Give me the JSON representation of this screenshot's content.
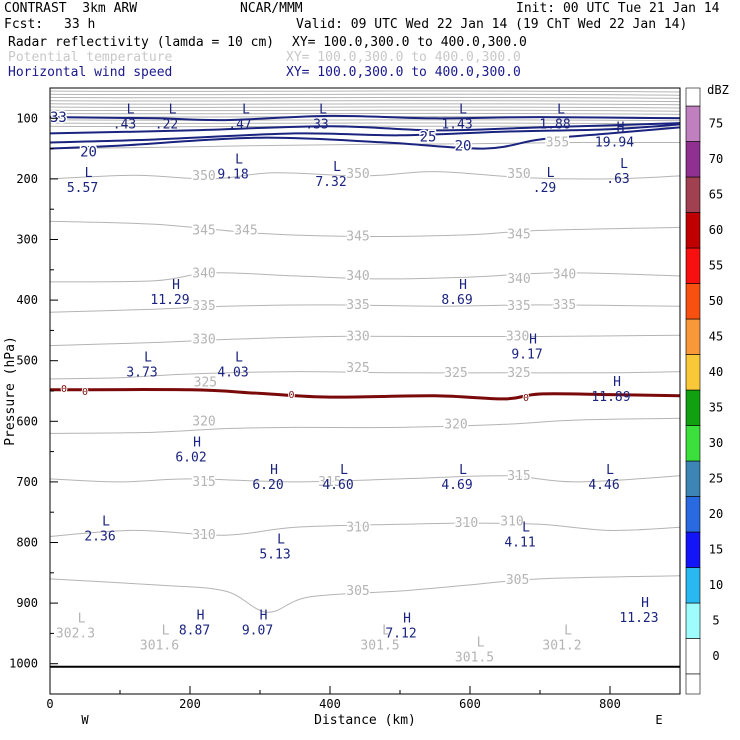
{
  "header": {
    "title": "CONTRAST  3km ARW",
    "center": "NCAR/MMM",
    "init": "Init: 00 UTC Tue 21 Jan 14",
    "fcst_label": "Fcst:",
    "fcst_value": "33 h",
    "valid": "Valid: 09 UTC Wed 22 Jan 14 (19 ChT Wed 22 Jan 14)",
    "fields": [
      {
        "name": "Radar reflectivity (lamda = 10 cm)",
        "xy": "XY= 100.0,300.0 to 400.0,300.0"
      },
      {
        "name": "Potential temperature",
        "xy": "XY= 100.0,300.0 to 400.0,300.0"
      },
      {
        "name": "Horizontal wind speed",
        "xy": "XY= 100.0,300.0 to 400.0,300.0"
      }
    ]
  },
  "chart_data": {
    "type": "contour-cross-section",
    "xlabel": "Distance (km)",
    "ylabel": "Pressure (hPa)",
    "xlim": [
      0,
      900
    ],
    "ylim": [
      1050,
      50
    ],
    "x_ticks": [
      0,
      200,
      400,
      600,
      800
    ],
    "y_ticks": [
      100,
      200,
      300,
      400,
      500,
      600,
      700,
      800,
      900,
      1000
    ],
    "x_end_labels": {
      "left": "W",
      "right": "E"
    },
    "colorbar": {
      "unit": "dBZ",
      "levels": [
        0,
        5,
        10,
        15,
        20,
        25,
        30,
        35,
        40,
        45,
        50,
        55,
        60,
        65,
        70,
        75
      ],
      "colors": [
        "#ffffff",
        "#9ffcfc",
        "#2ab8f0",
        "#1414f8",
        "#2a6ae0",
        "#3d85b5",
        "#3ce03c",
        "#10a010",
        "#f8c838",
        "#f89838",
        "#f85010",
        "#f81010",
        "#c00000",
        "#a04050",
        "#903090",
        "#c080c0"
      ]
    },
    "theta_isentropes": [
      {
        "value": 355,
        "points": [
          [
            0,
            150
          ],
          [
            150,
            148
          ],
          [
            300,
            145
          ],
          [
            450,
            143
          ],
          [
            600,
            142
          ],
          [
            750,
            140
          ],
          [
            900,
            140
          ]
        ],
        "labels": [
          [
            725,
            140
          ]
        ]
      },
      {
        "value": 350,
        "points": [
          [
            0,
            200
          ],
          [
            120,
            194
          ],
          [
            230,
            200
          ],
          [
            320,
            190
          ],
          [
            450,
            195
          ],
          [
            550,
            188
          ],
          [
            680,
            198
          ],
          [
            800,
            200
          ],
          [
            900,
            195
          ]
        ],
        "labels": [
          [
            220,
            195
          ],
          [
            440,
            192
          ],
          [
            670,
            192
          ]
        ]
      },
      {
        "value": 345,
        "points": [
          [
            0,
            270
          ],
          [
            150,
            275
          ],
          [
            300,
            290
          ],
          [
            450,
            295
          ],
          [
            600,
            292
          ],
          [
            700,
            285
          ],
          [
            900,
            280
          ]
        ],
        "labels": [
          [
            220,
            285
          ],
          [
            280,
            285
          ],
          [
            440,
            295
          ],
          [
            670,
            292
          ]
        ]
      },
      {
        "value": 340,
        "points": [
          [
            0,
            370
          ],
          [
            150,
            368
          ],
          [
            230,
            355
          ],
          [
            350,
            360
          ],
          [
            470,
            365
          ],
          [
            600,
            362
          ],
          [
            730,
            355
          ],
          [
            900,
            360
          ]
        ],
        "labels": [
          [
            220,
            356
          ],
          [
            440,
            360
          ],
          [
            670,
            365
          ],
          [
            735,
            358
          ]
        ]
      },
      {
        "value": 335,
        "points": [
          [
            0,
            420
          ],
          [
            150,
            415
          ],
          [
            250,
            410
          ],
          [
            400,
            408
          ],
          [
            550,
            410
          ],
          [
            700,
            408
          ],
          [
            900,
            410
          ]
        ],
        "labels": [
          [
            220,
            410
          ],
          [
            440,
            408
          ],
          [
            670,
            410
          ],
          [
            735,
            408
          ]
        ]
      },
      {
        "value": 330,
        "points": [
          [
            0,
            475
          ],
          [
            150,
            470
          ],
          [
            250,
            465
          ],
          [
            400,
            460
          ],
          [
            550,
            460
          ],
          [
            700,
            460
          ],
          [
            900,
            458
          ]
        ],
        "labels": [
          [
            220,
            465
          ],
          [
            440,
            460
          ],
          [
            668,
            460
          ]
        ]
      },
      {
        "value": 325,
        "points": [
          [
            0,
            530
          ],
          [
            100,
            528
          ],
          [
            200,
            522
          ],
          [
            350,
            518
          ],
          [
            500,
            520
          ],
          [
            650,
            520
          ],
          [
            800,
            520
          ],
          [
            900,
            518
          ]
        ],
        "labels": [
          [
            222,
            536
          ],
          [
            440,
            512
          ],
          [
            580,
            520
          ],
          [
            670,
            520
          ]
        ]
      },
      {
        "value": 320,
        "points": [
          [
            0,
            620
          ],
          [
            150,
            618
          ],
          [
            250,
            612
          ],
          [
            350,
            610
          ],
          [
            500,
            610
          ],
          [
            650,
            605
          ],
          [
            750,
            598
          ],
          [
            900,
            595
          ]
        ],
        "labels": [
          [
            220,
            600
          ],
          [
            580,
            605
          ]
        ]
      },
      {
        "value": 315,
        "points": [
          [
            0,
            695
          ],
          [
            100,
            700
          ],
          [
            200,
            695
          ],
          [
            350,
            700
          ],
          [
            500,
            695
          ],
          [
            650,
            690
          ],
          [
            750,
            700
          ],
          [
            900,
            690
          ]
        ],
        "labels": [
          [
            220,
            700
          ],
          [
            400,
            700
          ],
          [
            670,
            690
          ]
        ]
      },
      {
        "value": 310,
        "points": [
          [
            0,
            790
          ],
          [
            120,
            780
          ],
          [
            250,
            788
          ],
          [
            350,
            775
          ],
          [
            500,
            770
          ],
          [
            600,
            768
          ],
          [
            700,
            770
          ],
          [
            800,
            780
          ],
          [
            900,
            775
          ]
        ],
        "labels": [
          [
            220,
            788
          ],
          [
            440,
            775
          ],
          [
            595,
            768
          ],
          [
            660,
            765
          ]
        ]
      },
      {
        "value": 305,
        "points": [
          [
            0,
            860
          ],
          [
            150,
            870
          ],
          [
            250,
            880
          ],
          [
            310,
            915
          ],
          [
            370,
            890
          ],
          [
            500,
            880
          ],
          [
            600,
            870
          ],
          [
            700,
            860
          ],
          [
            900,
            855
          ]
        ],
        "labels": [
          [
            440,
            880
          ],
          [
            668,
            862
          ]
        ]
      }
    ],
    "wind_speed_contours": [
      {
        "value": 20,
        "points": [
          [
            0,
            150
          ],
          [
            100,
            145
          ],
          [
            300,
            132
          ],
          [
            480,
            140
          ],
          [
            620,
            150
          ],
          [
            700,
            135
          ],
          [
            800,
            125
          ],
          [
            900,
            115
          ]
        ],
        "labels": [
          [
            55,
            155
          ],
          [
            590,
            145
          ]
        ]
      },
      {
        "value": 25,
        "points": [
          [
            0,
            140
          ],
          [
            150,
            135
          ],
          [
            350,
            125
          ],
          [
            500,
            128
          ],
          [
            650,
            122
          ],
          [
            800,
            118
          ],
          [
            900,
            110
          ]
        ],
        "labels": [
          [
            540,
            130
          ]
        ]
      },
      {
        "value": 30,
        "points": [
          [
            0,
            125
          ],
          [
            200,
            120
          ],
          [
            400,
            113
          ],
          [
            550,
            120
          ],
          [
            700,
            115
          ],
          [
            900,
            108
          ]
        ],
        "labels": []
      },
      {
        "value": 33,
        "points": [
          [
            0,
            98
          ],
          [
            150,
            100
          ],
          [
            250,
            103
          ],
          [
            400,
            96
          ],
          [
            550,
            100
          ],
          [
            700,
            98
          ],
          [
            900,
            100
          ]
        ],
        "labels": [
          [
            12,
            98
          ]
        ]
      }
    ],
    "zero_contour": {
      "value": 0,
      "points": [
        [
          0,
          548
        ],
        [
          200,
          548
        ],
        [
          300,
          554
        ],
        [
          400,
          560
        ],
        [
          550,
          558
        ],
        [
          650,
          563
        ],
        [
          700,
          555
        ],
        [
          800,
          556
        ],
        [
          900,
          558
        ]
      ],
      "labels": [
        [
          20,
          545
        ],
        [
          50,
          550
        ],
        [
          345,
          555
        ],
        [
          680,
          560
        ]
      ]
    },
    "extrema_wind": [
      {
        "type": "L",
        "value": ".43",
        "x": 115,
        "p": 95
      },
      {
        "type": "L",
        "value": ".22",
        "x": 175,
        "p": 95
      },
      {
        "type": "L",
        "value": ".47",
        "x": 280,
        "p": 95
      },
      {
        "type": "L",
        "value": ".33",
        "x": 390,
        "p": 95
      },
      {
        "type": "L",
        "value": "1.43",
        "x": 590,
        "p": 95
      },
      {
        "type": "L",
        "value": "1.88",
        "x": 730,
        "p": 95
      },
      {
        "type": "H",
        "value": "19.94",
        "x": 815,
        "p": 125
      },
      {
        "type": "L",
        "value": "9.18",
        "x": 270,
        "p": 178
      },
      {
        "type": "L",
        "value": "7.32",
        "x": 410,
        "p": 190
      },
      {
        "type": "L",
        "value": "5.57",
        "x": 55,
        "p": 200
      },
      {
        "type": "L",
        "value": ".29",
        "x": 715,
        "p": 200
      },
      {
        "type": "L",
        "value": ".63",
        "x": 820,
        "p": 185
      },
      {
        "type": "H",
        "value": "11.29",
        "x": 180,
        "p": 385
      },
      {
        "type": "H",
        "value": "8.69",
        "x": 590,
        "p": 385
      },
      {
        "type": "H",
        "value": "9.17",
        "x": 690,
        "p": 475
      },
      {
        "type": "L",
        "value": "3.73",
        "x": 140,
        "p": 505
      },
      {
        "type": "L",
        "value": "4.03",
        "x": 270,
        "p": 505
      },
      {
        "type": "H",
        "value": "11.89",
        "x": 810,
        "p": 545
      },
      {
        "type": "H",
        "value": "6.02",
        "x": 210,
        "p": 645
      },
      {
        "type": "H",
        "value": "6.20",
        "x": 320,
        "p": 690
      },
      {
        "type": "L",
        "value": "4.60",
        "x": 420,
        "p": 690
      },
      {
        "type": "L",
        "value": "4.69",
        "x": 590,
        "p": 690
      },
      {
        "type": "L",
        "value": "4.46",
        "x": 800,
        "p": 690
      },
      {
        "type": "L",
        "value": "2.36",
        "x": 80,
        "p": 775
      },
      {
        "type": "L",
        "value": "4.11",
        "x": 680,
        "p": 785
      },
      {
        "type": "L",
        "value": "5.13",
        "x": 330,
        "p": 805
      },
      {
        "type": "H",
        "value": "8.87",
        "x": 215,
        "p": 930
      },
      {
        "type": "H",
        "value": "9.07",
        "x": 305,
        "p": 930
      },
      {
        "type": "H",
        "value": "7.12",
        "x": 510,
        "p": 935
      },
      {
        "type": "H",
        "value": "11.23",
        "x": 850,
        "p": 910
      }
    ],
    "extrema_theta": [
      {
        "type": "L",
        "value": "302.3",
        "x": 45,
        "p": 935
      },
      {
        "type": "L",
        "value": "301.6",
        "x": 165,
        "p": 955
      },
      {
        "type": "L",
        "value": "301.5",
        "x": 480,
        "p": 955
      },
      {
        "type": "L",
        "value": "301.5",
        "x": 615,
        "p": 975
      },
      {
        "type": "L",
        "value": "301.2",
        "x": 740,
        "p": 955
      }
    ]
  },
  "colors": {
    "theta": "#b4b4b4",
    "wind": "#1a237e",
    "zero": "#7a0a0a",
    "ground": "#000000"
  }
}
